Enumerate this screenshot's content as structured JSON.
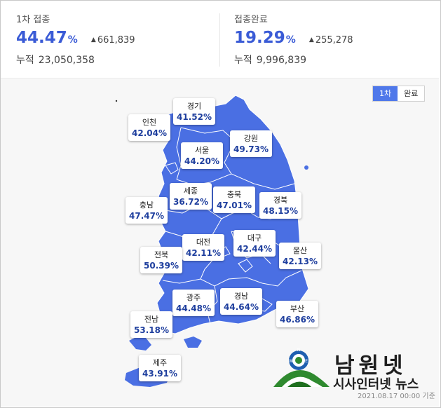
{
  "first_dose": {
    "label": "1차 접종",
    "percent": "44.47",
    "unit": "%",
    "delta": "661,839",
    "cumulative_label": "누적",
    "cumulative": "23,050,358"
  },
  "complete": {
    "label": "접종완료",
    "percent": "19.29",
    "unit": "%",
    "delta": "255,278",
    "cumulative_label": "누적",
    "cumulative": "9,996,839"
  },
  "toggle": {
    "first": "1차",
    "complete": "완료",
    "selected": "1차"
  },
  "regions": [
    {
      "name": "경기",
      "value": "41.52%"
    },
    {
      "name": "인천",
      "value": "42.04%"
    },
    {
      "name": "강원",
      "value": "49.73%"
    },
    {
      "name": "서울",
      "value": "44.20%"
    },
    {
      "name": "세종",
      "value": "36.72%"
    },
    {
      "name": "충북",
      "value": "47.01%"
    },
    {
      "name": "경북",
      "value": "48.15%"
    },
    {
      "name": "충남",
      "value": "47.47%"
    },
    {
      "name": "대전",
      "value": "42.11%"
    },
    {
      "name": "대구",
      "value": "42.44%"
    },
    {
      "name": "울산",
      "value": "42.13%"
    },
    {
      "name": "전북",
      "value": "50.39%"
    },
    {
      "name": "광주",
      "value": "44.48%"
    },
    {
      "name": "경남",
      "value": "44.64%"
    },
    {
      "name": "부산",
      "value": "46.86%"
    },
    {
      "name": "전남",
      "value": "53.18%"
    },
    {
      "name": "제주",
      "value": "43.91%"
    }
  ],
  "colors": {
    "map_fill": "#4a6fe3",
    "accent": "#3a5bd6",
    "toggle_on": "#4f78ea",
    "logo_green": "#2f8a2f"
  },
  "logo": {
    "title": "남원넷",
    "subtitle": "시사인터넷 뉴스"
  },
  "date_note": "2021.08.17 00:00 기준"
}
